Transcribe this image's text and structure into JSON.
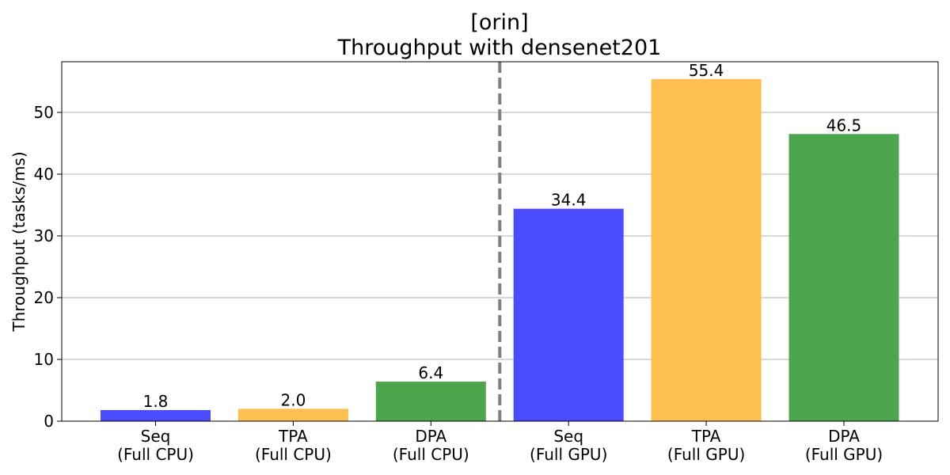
{
  "chart_data": {
    "type": "bar",
    "title": "[orin]",
    "subtitle": "Throughput with densenet201",
    "xlabel": "",
    "ylabel": "Throughput (tasks/ms)",
    "ylim": [
      0,
      58.2
    ],
    "yticks": [
      0,
      10,
      20,
      30,
      40,
      50
    ],
    "grid": "horizontal",
    "categories": [
      [
        "Seq",
        "(Full CPU)"
      ],
      [
        "TPA",
        "(Full CPU)"
      ],
      [
        "DPA",
        "(Full CPU)"
      ],
      [
        "Seq",
        "(Full GPU)"
      ],
      [
        "TPA",
        "(Full GPU)"
      ],
      [
        "DPA",
        "(Full GPU)"
      ]
    ],
    "values": [
      1.8,
      2.0,
      6.4,
      34.4,
      55.4,
      46.5
    ],
    "value_labels": [
      "1.8",
      "2.0",
      "6.4",
      "34.4",
      "55.4",
      "46.5"
    ],
    "bar_colors": [
      "#4b4bff",
      "#fdbf4f",
      "#4ca64c",
      "#4b4bff",
      "#fdbf4f",
      "#4ca64c"
    ],
    "separator": "dashed vertical line between CPU and GPU groups",
    "separator_color": "#808080"
  }
}
